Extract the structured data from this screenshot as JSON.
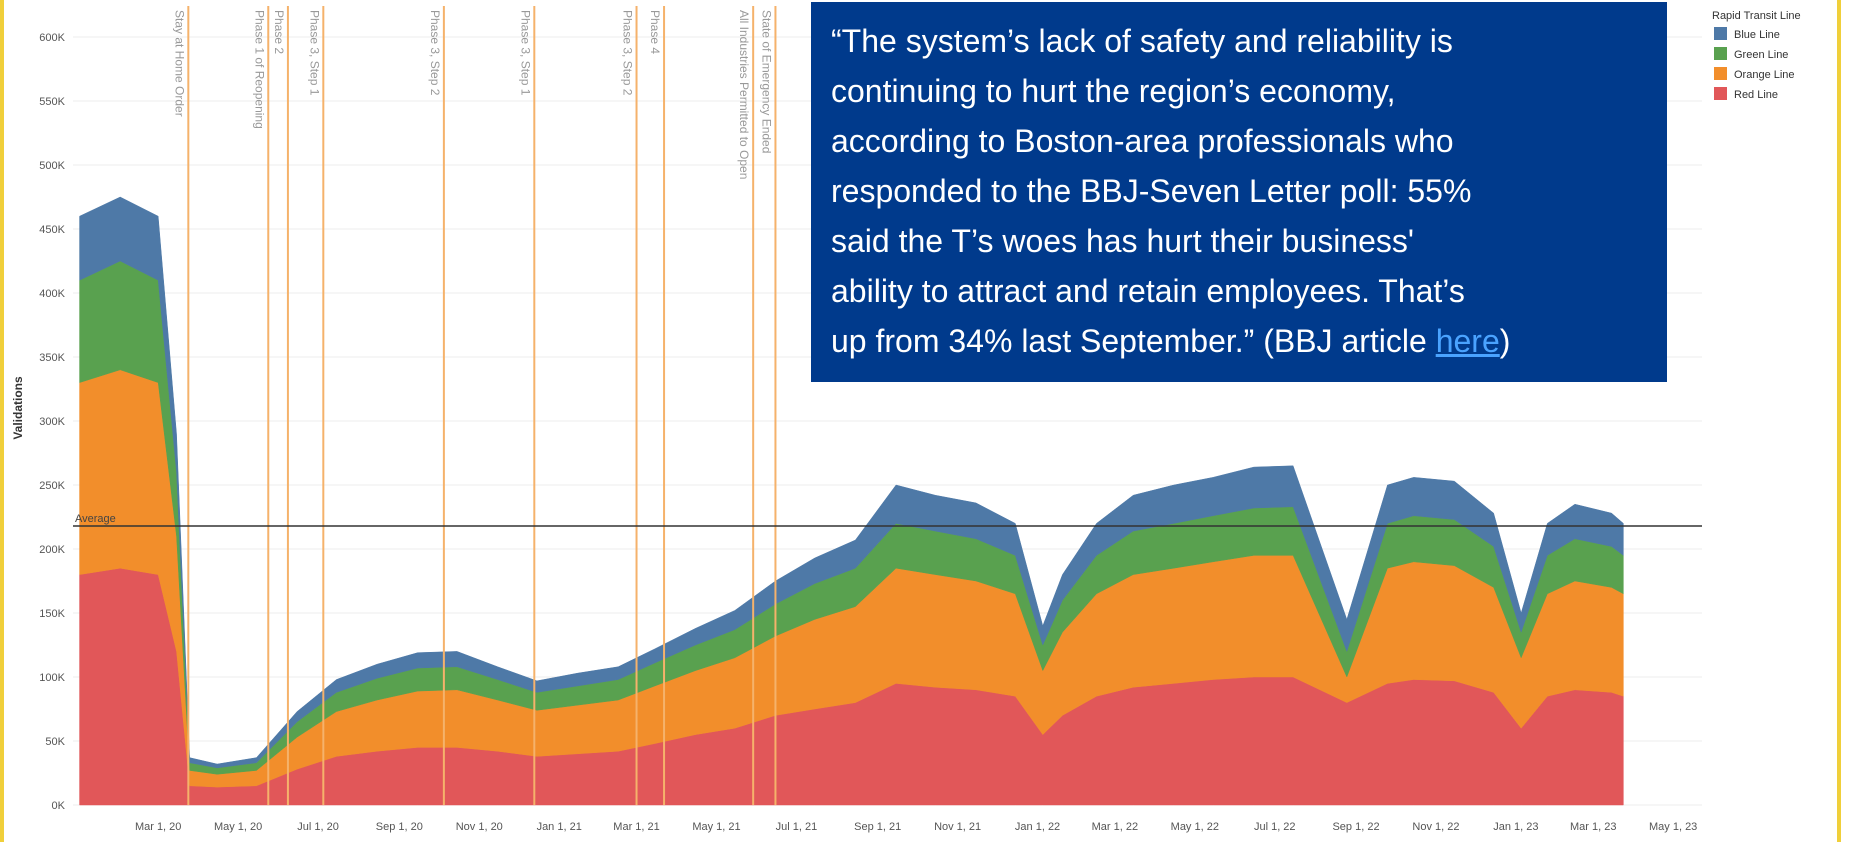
{
  "chart_data": {
    "type": "stacked_area",
    "ylabel": "Validations",
    "xlim": [
      "2019-12-27",
      "2023-05-23"
    ],
    "ylim": [
      0,
      600000
    ],
    "yticks": [
      {
        "value": 0,
        "label": "0K"
      },
      {
        "value": 50000,
        "label": "50K"
      },
      {
        "value": 100000,
        "label": "100K"
      },
      {
        "value": 150000,
        "label": "150K"
      },
      {
        "value": 200000,
        "label": "200K"
      },
      {
        "value": 250000,
        "label": "250K"
      },
      {
        "value": 300000,
        "label": "300K"
      },
      {
        "value": 350000,
        "label": "350K"
      },
      {
        "value": 400000,
        "label": "400K"
      },
      {
        "value": 450000,
        "label": "450K"
      },
      {
        "value": 500000,
        "label": "500K"
      },
      {
        "value": 550000,
        "label": "550K"
      },
      {
        "value": 600000,
        "label": "600K"
      }
    ],
    "xticks": [
      {
        "value": "2020-03-01",
        "label": "Mar 1, 20"
      },
      {
        "value": "2020-05-01",
        "label": "May 1, 20"
      },
      {
        "value": "2020-07-01",
        "label": "Jul 1, 20"
      },
      {
        "value": "2020-09-01",
        "label": "Sep 1, 20"
      },
      {
        "value": "2020-11-01",
        "label": "Nov 1, 20"
      },
      {
        "value": "2021-01-01",
        "label": "Jan 1, 21"
      },
      {
        "value": "2021-03-01",
        "label": "Mar 1, 21"
      },
      {
        "value": "2021-05-01",
        "label": "May 1, 21"
      },
      {
        "value": "2021-07-01",
        "label": "Jul 1, 21"
      },
      {
        "value": "2021-09-01",
        "label": "Sep 1, 21"
      },
      {
        "value": "2021-11-01",
        "label": "Nov 1, 21"
      },
      {
        "value": "2022-01-01",
        "label": "Jan 1, 22"
      },
      {
        "value": "2022-03-01",
        "label": "Mar 1, 22"
      },
      {
        "value": "2022-05-01",
        "label": "May 1, 22"
      },
      {
        "value": "2022-07-01",
        "label": "Jul 1, 22"
      },
      {
        "value": "2022-09-01",
        "label": "Sep 1, 22"
      },
      {
        "value": "2022-11-01",
        "label": "Nov 1, 22"
      },
      {
        "value": "2023-01-01",
        "label": "Jan 1, 23"
      },
      {
        "value": "2023-03-01",
        "label": "Mar 1, 23"
      },
      {
        "value": "2023-05-01",
        "label": "May 1, 23"
      }
    ],
    "grid": true,
    "x": [
      "2020-01-01",
      "2020-02-01",
      "2020-03-01",
      "2020-03-15",
      "2020-03-25",
      "2020-04-15",
      "2020-05-15",
      "2020-06-15",
      "2020-07-15",
      "2020-08-15",
      "2020-09-15",
      "2020-10-15",
      "2020-11-15",
      "2020-12-15",
      "2021-01-15",
      "2021-02-15",
      "2021-03-15",
      "2021-04-15",
      "2021-05-15",
      "2021-06-15",
      "2021-07-15",
      "2021-08-15",
      "2021-09-15",
      "2021-10-15",
      "2021-11-15",
      "2021-12-15",
      "2022-01-05",
      "2022-01-20",
      "2022-02-15",
      "2022-03-15",
      "2022-04-15",
      "2022-05-15",
      "2022-06-15",
      "2022-07-15",
      "2022-08-25",
      "2022-09-25",
      "2022-10-15",
      "2022-11-15",
      "2022-12-15",
      "2023-01-05",
      "2023-01-25",
      "2023-02-15",
      "2023-03-15",
      "2023-03-24"
    ],
    "legend_title": "Rapid Transit Line",
    "series": [
      {
        "name": "Blue Line",
        "color": "#4e79a7",
        "values": [
          50000,
          50000,
          50000,
          30000,
          4000,
          3000,
          4000,
          8000,
          10000,
          11000,
          12000,
          12000,
          10000,
          9000,
          10000,
          10000,
          11000,
          13000,
          15000,
          18000,
          20000,
          22000,
          30000,
          28000,
          28000,
          25000,
          15000,
          20000,
          25000,
          28000,
          30000,
          30000,
          32000,
          32000,
          25000,
          30000,
          30000,
          30000,
          26000,
          15000,
          25000,
          27000,
          26000,
          25000
        ]
      },
      {
        "name": "Green Line",
        "color": "#59a14f",
        "values": [
          80000,
          85000,
          80000,
          50000,
          6000,
          5000,
          6000,
          12000,
          15000,
          17000,
          18000,
          18000,
          16000,
          14000,
          15000,
          16000,
          18000,
          20000,
          22000,
          25000,
          28000,
          30000,
          35000,
          34000,
          33000,
          30000,
          20000,
          25000,
          30000,
          34000,
          35000,
          36000,
          37000,
          38000,
          20000,
          35000,
          36000,
          36000,
          32000,
          20000,
          30000,
          33000,
          32000,
          30000
        ]
      },
      {
        "name": "Orange Line",
        "color": "#f28e2b",
        "values": [
          150000,
          155000,
          150000,
          90000,
          12000,
          10000,
          12000,
          25000,
          35000,
          40000,
          44000,
          45000,
          40000,
          36000,
          38000,
          40000,
          45000,
          50000,
          55000,
          62000,
          70000,
          75000,
          90000,
          88000,
          85000,
          80000,
          50000,
          65000,
          80000,
          88000,
          90000,
          92000,
          95000,
          95000,
          20000,
          90000,
          92000,
          90000,
          82000,
          55000,
          80000,
          85000,
          82000,
          80000
        ]
      },
      {
        "name": "Red Line",
        "color": "#e15759",
        "values": [
          180000,
          185000,
          180000,
          120000,
          15000,
          14000,
          15000,
          28000,
          38000,
          42000,
          45000,
          45000,
          42000,
          38000,
          40000,
          42000,
          48000,
          55000,
          60000,
          70000,
          75000,
          80000,
          95000,
          92000,
          90000,
          85000,
          55000,
          70000,
          85000,
          92000,
          95000,
          98000,
          100000,
          100000,
          80000,
          95000,
          98000,
          97000,
          88000,
          60000,
          85000,
          90000,
          88000,
          85000
        ]
      }
    ],
    "average": {
      "value": 218000,
      "label": "Average"
    },
    "events": [
      {
        "date": "2020-03-24",
        "label": "Stay at Home Order"
      },
      {
        "date": "2020-05-24",
        "label": "Phase 1 of Reopening"
      },
      {
        "date": "2020-06-08",
        "label": "Phase 2"
      },
      {
        "date": "2020-07-05",
        "label": "Phase 3, Step 1"
      },
      {
        "date": "2020-10-05",
        "label": "Phase 3, Step 2"
      },
      {
        "date": "2020-12-13",
        "label": "Phase 3, Step 1"
      },
      {
        "date": "2021-03-01",
        "label": "Phase 3, Step 2"
      },
      {
        "date": "2021-03-22",
        "label": "Phase 4"
      },
      {
        "date": "2021-05-29",
        "label": "All Industries Permitted to Open"
      },
      {
        "date": "2021-06-15",
        "label": "State of Emergency Ended"
      }
    ]
  },
  "quote": {
    "lines": [
      "“The system’s lack of safety and reliability is",
      "continuing to hurt the region’s economy,",
      "according to Boston-area professionals who",
      "responded to the BBJ-Seven Letter poll: 55%",
      "said the T’s woes has hurt their business'",
      "ability to attract and retain employees. That’s",
      "up from 34% last September.” (BBJ article "
    ],
    "link": "here",
    "end": ")"
  }
}
